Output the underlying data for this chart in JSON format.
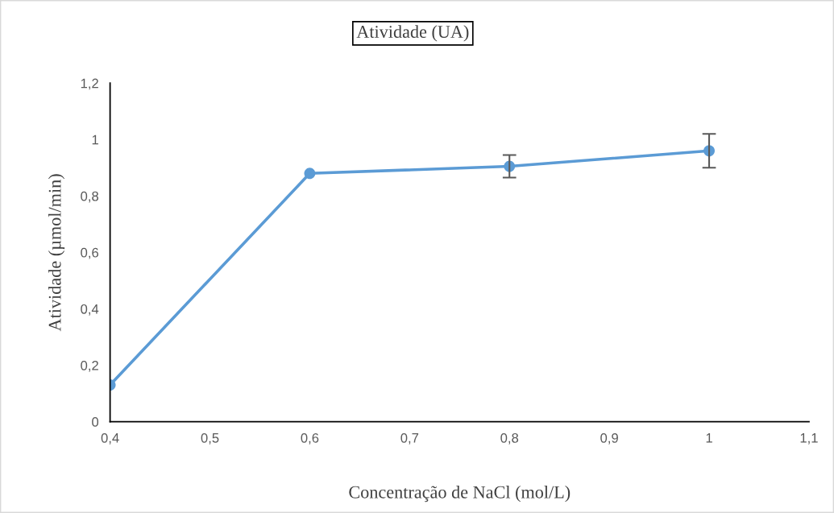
{
  "chart_data": {
    "type": "line",
    "title": "Atividade (UA)",
    "xlabel": "Concentração de NaCl (mol/L)",
    "ylabel": "Atividade (µmol/min)",
    "x": [
      0.4,
      0.6,
      0.8,
      1.0
    ],
    "series": [
      {
        "color": "#5b9bd5",
        "values": [
          0.13,
          0.88,
          0.905,
          0.96
        ],
        "errors": [
          null,
          null,
          0.04,
          0.06
        ]
      }
    ],
    "marker": "circle",
    "line_style": "solid",
    "grid": false,
    "xlim": [
      0.4,
      1.1
    ],
    "ylim": [
      0,
      1.2
    ],
    "xticks": [
      {
        "value": 0.4,
        "label": "0,4"
      },
      {
        "value": 0.5,
        "label": "0,5"
      },
      {
        "value": 0.6,
        "label": "0,6"
      },
      {
        "value": 0.7,
        "label": "0,7"
      },
      {
        "value": 0.8,
        "label": "0,8"
      },
      {
        "value": 0.9,
        "label": "0,9"
      },
      {
        "value": 1.0,
        "label": "1"
      },
      {
        "value": 1.1,
        "label": "1,1"
      }
    ],
    "yticks": [
      0,
      {
        "value": 0.2,
        "label": "0,2"
      },
      {
        "value": 0.4,
        "label": "0,4"
      },
      {
        "value": 0.6,
        "label": "0,6"
      },
      {
        "value": 0.8,
        "label": "0,8"
      },
      1,
      {
        "value": 1.2,
        "label": "1,2"
      }
    ]
  }
}
